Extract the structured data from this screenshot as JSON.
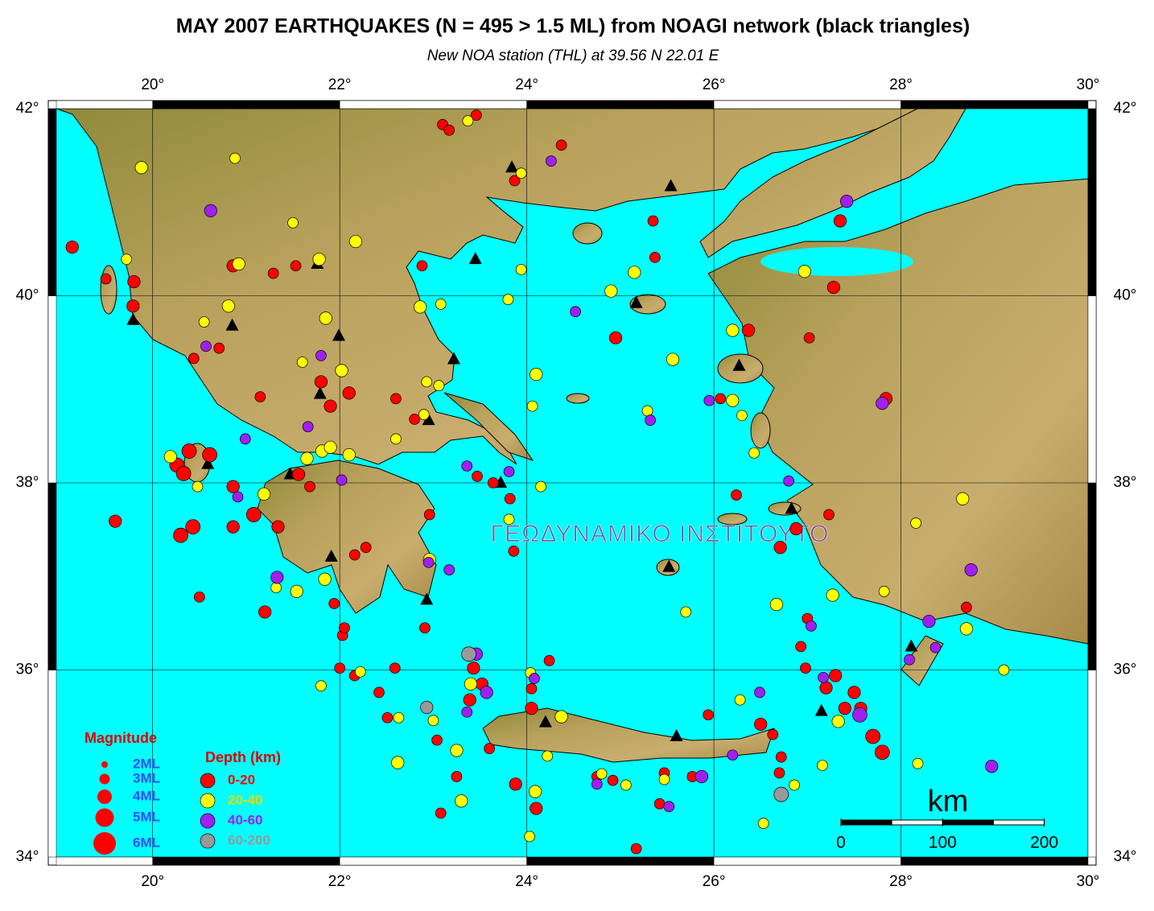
{
  "chart_data": {
    "type": "map",
    "title": "MAY 2007 EARTHQUAKES (N = 495 > 1.5 ML) from NOAGI network (black triangles)",
    "subtitle": "New NOA station (THL) at 39.56 N  22.01 E",
    "watermark": "ΓΕΩΔΥΝΑΜΙΚΟ ΙΝΣΤΙΤΟΥΤΟ",
    "xlim": [
      18.97,
      30
    ],
    "ylim": [
      34,
      42
    ],
    "xticks": [
      {
        "value": 20,
        "label": "20°"
      },
      {
        "value": 22,
        "label": "22°"
      },
      {
        "value": 24,
        "label": "24°"
      },
      {
        "value": 26,
        "label": "26°"
      },
      {
        "value": 28,
        "label": "28°"
      },
      {
        "value": 30,
        "label": "30°"
      }
    ],
    "yticks": [
      {
        "value": 34,
        "label": "34°"
      },
      {
        "value": 36,
        "label": "36°"
      },
      {
        "value": 38,
        "label": "38°"
      },
      {
        "value": 40,
        "label": "40°"
      },
      {
        "value": 42,
        "label": "42°"
      }
    ],
    "grid": true,
    "magnitude_legend": {
      "title": "Magnitude",
      "entries": [
        {
          "value": 2,
          "label": "2ML"
        },
        {
          "value": 3,
          "label": "3ML"
        },
        {
          "value": 4,
          "label": "4ML"
        },
        {
          "value": 5,
          "label": "5ML"
        },
        {
          "value": 6,
          "label": "6ML"
        }
      ]
    },
    "depth_legend_title": "Depth (km)",
    "scale_bar": {
      "title": "km",
      "ticks": [
        0,
        100,
        200
      ]
    },
    "stations": [
      [
        19.79,
        39.74
      ],
      [
        20.85,
        39.68
      ],
      [
        21.99,
        39.57
      ],
      [
        21.76,
        40.34
      ],
      [
        21.79,
        38.95
      ],
      [
        20.59,
        38.2
      ],
      [
        21.47,
        38.09
      ],
      [
        21.91,
        37.21
      ],
      [
        22.93,
        36.75
      ],
      [
        22.95,
        38.67
      ],
      [
        23.22,
        39.32
      ],
      [
        23.72,
        38.0
      ],
      [
        23.45,
        40.39
      ],
      [
        23.84,
        41.37
      ],
      [
        25.54,
        41.17
      ],
      [
        25.17,
        39.92
      ],
      [
        26.27,
        39.25
      ],
      [
        26.83,
        37.72
      ],
      [
        25.52,
        37.1
      ],
      [
        25.6,
        35.29
      ],
      [
        24.2,
        35.44
      ],
      [
        27.15,
        35.56
      ],
      [
        28.11,
        36.25
      ]
    ],
    "series": [
      {
        "name": "0-20",
        "color": "#ff0000",
        "points": [
          [
            19.14,
            40.52,
            3.5
          ],
          [
            19.6,
            37.59,
            3.5
          ],
          [
            19.8,
            40.15,
            3.5
          ],
          [
            19.5,
            40.18,
            3
          ],
          [
            19.79,
            39.89,
            3.5
          ],
          [
            20.5,
            36.78,
            3
          ],
          [
            20.3,
            37.44,
            4
          ],
          [
            20.43,
            37.53,
            4
          ],
          [
            20.26,
            38.19,
            4
          ],
          [
            20.39,
            38.34,
            4
          ],
          [
            20.61,
            38.3,
            4
          ],
          [
            20.33,
            38.1,
            4
          ],
          [
            20.86,
            37.96,
            3.5
          ],
          [
            21.08,
            37.66,
            4
          ],
          [
            20.86,
            37.53,
            3.5
          ],
          [
            21.2,
            36.62,
            3.5
          ],
          [
            21.34,
            37.53,
            3.5
          ],
          [
            21.56,
            38.09,
            3.5
          ],
          [
            21.68,
            37.96,
            3
          ],
          [
            21.9,
            38.82,
            3.5
          ],
          [
            21.8,
            39.08,
            3.5
          ],
          [
            22.1,
            38.96,
            3.5
          ],
          [
            21.15,
            38.92,
            3
          ],
          [
            22.16,
            37.23,
            3
          ],
          [
            22.28,
            37.31,
            3
          ],
          [
            21.94,
            36.71,
            3
          ],
          [
            22.03,
            36.37,
            3
          ],
          [
            22.16,
            35.94,
            3
          ],
          [
            22.42,
            35.76,
            3
          ],
          [
            22.6,
            38.9,
            3
          ],
          [
            22.8,
            38.68,
            3
          ],
          [
            22.96,
            37.66,
            3
          ],
          [
            22.91,
            36.45,
            3
          ],
          [
            23.47,
            38.07,
            3
          ],
          [
            23.64,
            38.0,
            3
          ],
          [
            23.82,
            37.83,
            3
          ],
          [
            23.86,
            37.27,
            3
          ],
          [
            23.43,
            36.02,
            3.5
          ],
          [
            23.52,
            35.85,
            3.5
          ],
          [
            23.39,
            35.68,
            3.5
          ],
          [
            23.04,
            35.25,
            3
          ],
          [
            23.25,
            34.86,
            3
          ],
          [
            23.08,
            34.47,
            3
          ],
          [
            23.6,
            35.16,
            3
          ],
          [
            24.05,
            35.59,
            3.5
          ],
          [
            23.88,
            34.78,
            3.5
          ],
          [
            24.1,
            34.52,
            3.5
          ],
          [
            24.24,
            36.1,
            3
          ],
          [
            24.05,
            35.8,
            3
          ],
          [
            24.75,
            34.86,
            3
          ],
          [
            24.92,
            34.82,
            3
          ],
          [
            24.95,
            39.55,
            3.5
          ],
          [
            25.35,
            40.8,
            3
          ],
          [
            25.37,
            40.41,
            3
          ],
          [
            25.17,
            34.09,
            3
          ],
          [
            25.42,
            34.57,
            3
          ],
          [
            25.47,
            34.9,
            3
          ],
          [
            25.77,
            34.86,
            3
          ],
          [
            25.94,
            35.52,
            3
          ],
          [
            26.24,
            37.87,
            3
          ],
          [
            26.37,
            39.63,
            3.5
          ],
          [
            26.07,
            38.9,
            3
          ],
          [
            26.5,
            35.42,
            3.5
          ],
          [
            26.72,
            35.07,
            3
          ],
          [
            26.7,
            34.9,
            3
          ],
          [
            26.63,
            35.31,
            3
          ],
          [
            26.88,
            37.51,
            3.5
          ],
          [
            26.71,
            37.31,
            3.5
          ],
          [
            27.0,
            36.55,
            3
          ],
          [
            26.93,
            36.25,
            3
          ],
          [
            26.98,
            36.02,
            3
          ],
          [
            27.2,
            35.81,
            3.5
          ],
          [
            27.3,
            35.94,
            3.5
          ],
          [
            27.5,
            35.76,
            3.5
          ],
          [
            27.57,
            35.59,
            3.5
          ],
          [
            27.7,
            35.29,
            4
          ],
          [
            27.8,
            35.12,
            4
          ],
          [
            27.4,
            35.59,
            3.5
          ],
          [
            27.23,
            37.66,
            3
          ],
          [
            27.02,
            39.55,
            3
          ],
          [
            27.28,
            40.09,
            3.5
          ],
          [
            27.35,
            40.8,
            3.5
          ],
          [
            27.84,
            38.9,
            3.5
          ],
          [
            28.7,
            36.67,
            3
          ],
          [
            24.37,
            41.61,
            3
          ],
          [
            23.87,
            41.23,
            3
          ],
          [
            23.1,
            41.83,
            3
          ],
          [
            23.17,
            41.77,
            3
          ],
          [
            23.46,
            41.93,
            3
          ],
          [
            22.88,
            40.32,
            3
          ],
          [
            21.53,
            40.32,
            3
          ],
          [
            20.86,
            40.32,
            3.5
          ],
          [
            21.29,
            40.24,
            3
          ],
          [
            20.44,
            39.33,
            3
          ],
          [
            20.71,
            39.44,
            3
          ],
          [
            22.0,
            36.02,
            3
          ],
          [
            22.05,
            36.45,
            3
          ],
          [
            22.59,
            36.02,
            3
          ],
          [
            22.51,
            35.49,
            3
          ]
        ]
      },
      {
        "name": "20-40",
        "color": "#ffff00",
        "points": [
          [
            19.88,
            41.37,
            3.5
          ],
          [
            20.88,
            41.47,
            3
          ],
          [
            19.72,
            40.39,
            3
          ],
          [
            20.81,
            39.89,
            3.5
          ],
          [
            20.55,
            39.72,
            3
          ],
          [
            20.48,
            37.96,
            3
          ],
          [
            20.19,
            38.28,
            3.5
          ],
          [
            21.19,
            37.88,
            3.5
          ],
          [
            21.32,
            36.88,
            3
          ],
          [
            21.54,
            36.84,
            3.5
          ],
          [
            21.84,
            36.97,
            3.5
          ],
          [
            21.81,
            38.34,
            3.5
          ],
          [
            22.02,
            39.2,
            3.5
          ],
          [
            21.85,
            39.76,
            3.5
          ],
          [
            21.6,
            39.29,
            3
          ],
          [
            22.17,
            40.58,
            3.5
          ],
          [
            21.78,
            40.39,
            3.5
          ],
          [
            21.5,
            40.78,
            3
          ],
          [
            20.92,
            40.34,
            3.5
          ],
          [
            22.1,
            38.3,
            3.5
          ],
          [
            21.9,
            38.38,
            3.5
          ],
          [
            21.65,
            38.26,
            3.5
          ],
          [
            22.93,
            39.08,
            3
          ],
          [
            23.06,
            39.04,
            3
          ],
          [
            22.9,
            38.73,
            3
          ],
          [
            22.6,
            38.47,
            3
          ],
          [
            23.37,
            41.87,
            3
          ],
          [
            23.94,
            41.31,
            3
          ],
          [
            23.94,
            40.28,
            3
          ],
          [
            23.8,
            39.96,
            3
          ],
          [
            24.1,
            39.16,
            3.5
          ],
          [
            24.06,
            38.82,
            3
          ],
          [
            24.15,
            37.96,
            3
          ],
          [
            23.81,
            37.61,
            3
          ],
          [
            22.96,
            37.18,
            3.5
          ],
          [
            22.86,
            39.88,
            3.5
          ],
          [
            23.08,
            39.91,
            3
          ],
          [
            24.9,
            40.05,
            3.5
          ],
          [
            25.15,
            40.25,
            3.5
          ],
          [
            25.56,
            39.32,
            3.5
          ],
          [
            25.29,
            38.77,
            3
          ],
          [
            26.2,
            39.63,
            3.5
          ],
          [
            26.2,
            38.88,
            3.5
          ],
          [
            26.3,
            38.72,
            3
          ],
          [
            26.43,
            38.32,
            3
          ],
          [
            26.97,
            40.26,
            3.5
          ],
          [
            28.66,
            37.83,
            3.5
          ],
          [
            28.16,
            37.57,
            3
          ],
          [
            27.82,
            36.84,
            3
          ],
          [
            27.27,
            36.8,
            3.5
          ],
          [
            28.7,
            36.44,
            3.5
          ],
          [
            29.1,
            36.0,
            3
          ],
          [
            26.67,
            36.7,
            3.5
          ],
          [
            25.7,
            36.62,
            3
          ],
          [
            28.18,
            35.0,
            3
          ],
          [
            27.16,
            34.98,
            3
          ],
          [
            26.86,
            34.77,
            3
          ],
          [
            26.53,
            34.36,
            3
          ],
          [
            27.33,
            35.45,
            3.5
          ],
          [
            24.04,
            35.97,
            3
          ],
          [
            24.37,
            35.5,
            3.5
          ],
          [
            24.22,
            35.08,
            3
          ],
          [
            24.09,
            34.7,
            3.5
          ],
          [
            24.03,
            34.22,
            3
          ],
          [
            23.3,
            34.6,
            3.5
          ],
          [
            23.25,
            35.14,
            3.5
          ],
          [
            23.0,
            35.46,
            3
          ],
          [
            22.62,
            35.01,
            3.5
          ],
          [
            22.63,
            35.49,
            3
          ],
          [
            21.8,
            35.83,
            3
          ],
          [
            22.22,
            35.98,
            3
          ],
          [
            24.8,
            34.89,
            3
          ],
          [
            25.06,
            34.77,
            3
          ],
          [
            25.47,
            34.83,
            3
          ],
          [
            26.28,
            35.68,
            3
          ],
          [
            23.4,
            35.85,
            3.5
          ]
        ]
      },
      {
        "name": "40-60",
        "color": "#a020f0",
        "points": [
          [
            20.62,
            40.91,
            3.5
          ],
          [
            20.57,
            39.46,
            3
          ],
          [
            20.99,
            38.47,
            3
          ],
          [
            21.66,
            38.6,
            3
          ],
          [
            20.91,
            37.85,
            3
          ],
          [
            22.02,
            38.03,
            3
          ],
          [
            21.33,
            36.99,
            3.5
          ],
          [
            21.8,
            39.36,
            3
          ],
          [
            22.95,
            37.15,
            3
          ],
          [
            23.17,
            37.07,
            3
          ],
          [
            23.36,
            38.18,
            3
          ],
          [
            23.81,
            38.12,
            3
          ],
          [
            24.26,
            41.44,
            3
          ],
          [
            24.52,
            39.83,
            3
          ],
          [
            25.32,
            38.67,
            3
          ],
          [
            25.95,
            38.88,
            3
          ],
          [
            26.8,
            38.02,
            3
          ],
          [
            27.42,
            41.01,
            3.5
          ],
          [
            27.8,
            38.85,
            3.5
          ],
          [
            28.75,
            37.07,
            3.5
          ],
          [
            28.3,
            36.52,
            3.5
          ],
          [
            28.37,
            36.24,
            3
          ],
          [
            28.09,
            36.11,
            3
          ],
          [
            28.97,
            34.97,
            3.5
          ],
          [
            27.56,
            35.52,
            4
          ],
          [
            27.17,
            35.92,
            3
          ],
          [
            27.04,
            36.47,
            3
          ],
          [
            26.49,
            35.76,
            3
          ],
          [
            26.2,
            35.09,
            3
          ],
          [
            25.87,
            34.86,
            3.5
          ],
          [
            25.52,
            34.54,
            3
          ],
          [
            24.75,
            34.78,
            3
          ],
          [
            24.08,
            35.91,
            3
          ],
          [
            23.46,
            36.17,
            3.5
          ],
          [
            23.57,
            35.76,
            3.5
          ],
          [
            23.36,
            35.55,
            3
          ]
        ]
      },
      {
        "name": "60-200",
        "color": "#999999",
        "points": [
          [
            23.38,
            36.17,
            4
          ],
          [
            22.93,
            35.6,
            3.5
          ],
          [
            26.72,
            34.67,
            4
          ]
        ]
      }
    ]
  }
}
